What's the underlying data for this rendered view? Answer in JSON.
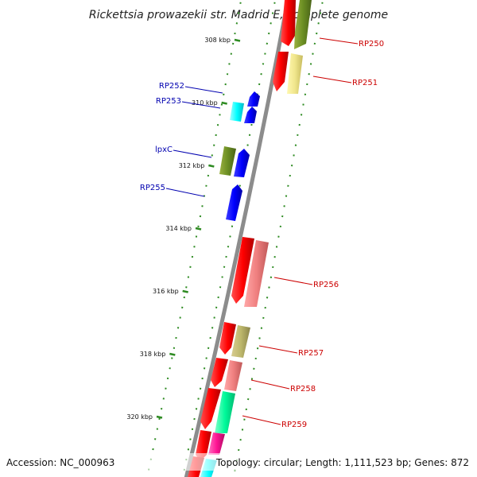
{
  "title": "Rickettsia prowazekii str. Madrid E, complete genome",
  "footer": {
    "accession": "Accession: NC_000963",
    "summary": "Topology: circular; Length: 1,111,523 bp; Genes: 872"
  },
  "colors": {
    "backbone": "#8c8c8c",
    "tick": "#2e8b22",
    "left_label": "#0000b0",
    "right_label": "#cc0000"
  },
  "ticks": [
    {
      "label": "308 kbp",
      "kbp": 308
    },
    {
      "label": "310 kbp",
      "kbp": 310
    },
    {
      "label": "312 kbp",
      "kbp": 312
    },
    {
      "label": "314 kbp",
      "kbp": 314
    },
    {
      "label": "316 kbp",
      "kbp": 316
    },
    {
      "label": "318 kbp",
      "kbp": 318
    },
    {
      "label": "320 kbp",
      "kbp": 320
    }
  ],
  "left_labels": [
    {
      "text": "RP252"
    },
    {
      "text": "RP253"
    },
    {
      "text": "lpxC"
    },
    {
      "text": "RP255"
    }
  ],
  "right_labels": [
    {
      "text": "RP250"
    },
    {
      "text": "RP251"
    },
    {
      "text": "RP256"
    },
    {
      "text": "RP257"
    },
    {
      "text": "RP258"
    },
    {
      "text": "RP259"
    }
  ]
}
